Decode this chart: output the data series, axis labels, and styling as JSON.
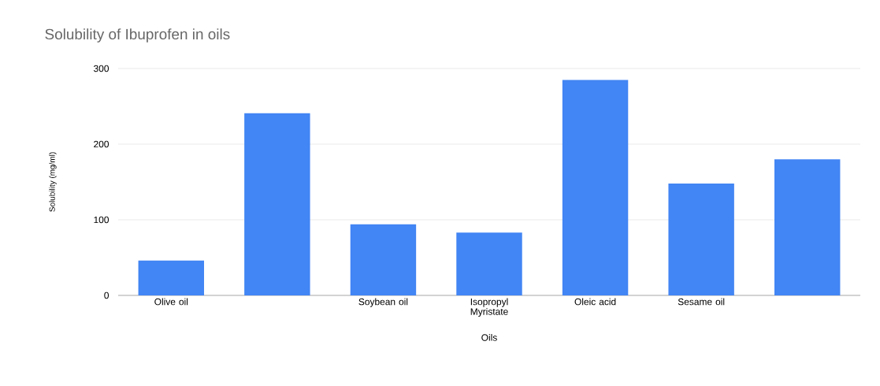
{
  "chart_data": {
    "type": "bar",
    "title": "Solubility  of Ibuprofen in oils",
    "xlabel": "Oils",
    "ylabel": "Solubility (mg/ml)",
    "categories": [
      "Olive oil",
      null,
      "Soybean oil",
      "Isopropyl Myristate",
      "Oleic acid",
      "Sesame oil",
      null
    ],
    "values": [
      46,
      241,
      94,
      83,
      285,
      148,
      180
    ],
    "color": "#4285f4",
    "ylim": [
      0,
      300
    ],
    "yticks": [
      0,
      100,
      200,
      300
    ],
    "grid": "y"
  }
}
